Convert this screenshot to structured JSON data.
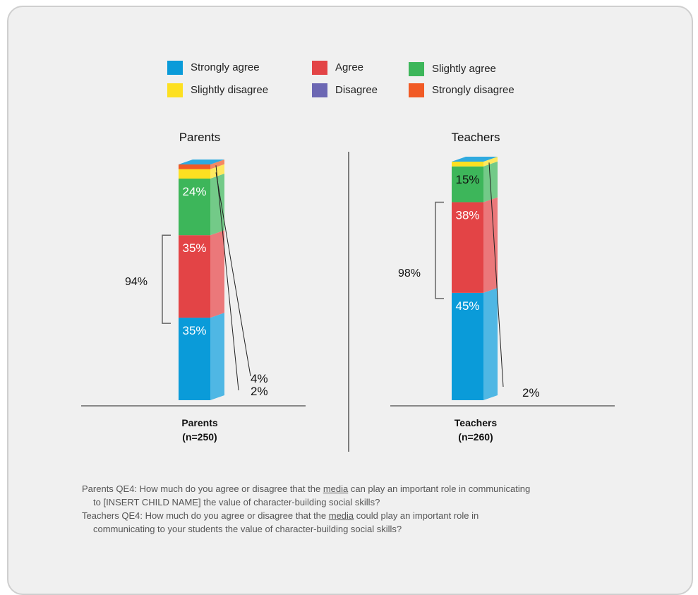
{
  "chart_data": {
    "type": "bar",
    "stacked": true,
    "legend": {
      "placement": "top-center",
      "entries": [
        {
          "label": "Strongly agree",
          "color": "#0a9bd9"
        },
        {
          "label": "Agree",
          "color": "#e34446"
        },
        {
          "label": "Slightly agree",
          "color": "#3db65a"
        },
        {
          "label": "Slightly disagree",
          "color": "#fde021"
        },
        {
          "label": "Disagree",
          "color": "#6c67b3"
        },
        {
          "label": "Strongly disagree",
          "color": "#f15a25"
        }
      ]
    },
    "panels": [
      {
        "title": "Parents",
        "category_label": "Parents",
        "n_label": "(n=250)",
        "bracket_label": "94%",
        "segments": [
          {
            "series": "Strongly agree",
            "value": 35,
            "label": "35%"
          },
          {
            "series": "Agree",
            "value": 35,
            "label": "35%"
          },
          {
            "series": "Slightly agree",
            "value": 24,
            "label": "24%"
          },
          {
            "series": "Slightly disagree",
            "value": 4,
            "label": "4%"
          },
          {
            "series": "Strongly disagree",
            "value": 2,
            "label": "2%"
          }
        ]
      },
      {
        "title": "Teachers",
        "category_label": "Teachers",
        "n_label": "(n=260)",
        "bracket_label": "98%",
        "segments": [
          {
            "series": "Strongly agree",
            "value": 45,
            "label": "45%"
          },
          {
            "series": "Agree",
            "value": 38,
            "label": "38%"
          },
          {
            "series": "Slightly agree",
            "value": 15,
            "label": "15%"
          },
          {
            "series": "Slightly disagree",
            "value": 2,
            "label": "2%"
          }
        ]
      }
    ]
  },
  "footnotes": {
    "parents_prefix": "Parents QE4: How much do you agree or disagree that the ",
    "parents_link": "media",
    "parents_suffix": " can play an important role in communicating",
    "parents_line2": "to [INSERT CHILD NAME] the value of character-building social skills?",
    "teachers_prefix": "Teachers QE4: How much do you agree or disagree that the ",
    "teachers_link": "media",
    "teachers_suffix": " could play an important role in",
    "teachers_line2": "communicating to your students the value of character-building social skills?"
  }
}
